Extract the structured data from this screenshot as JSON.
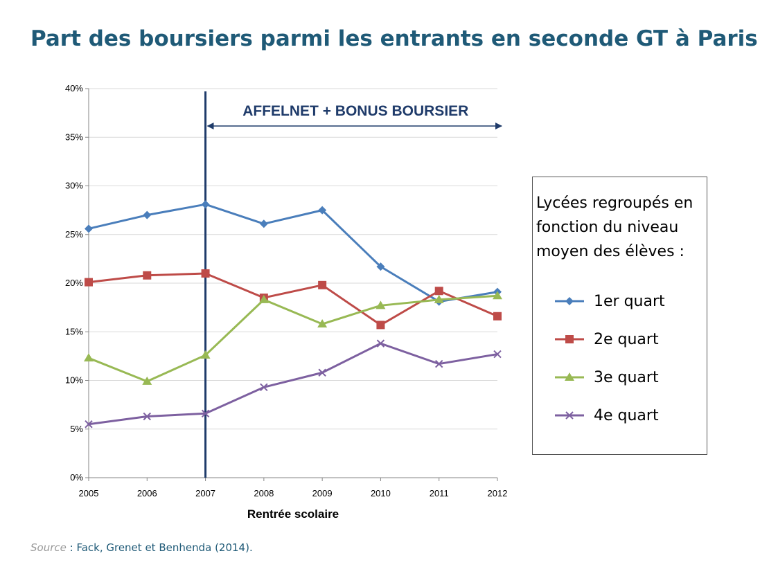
{
  "page": {
    "title": "Part des boursiers parmi les entrants en seconde GT à Paris",
    "source_label": "Source",
    "source_sep": " : ",
    "source_text": "Fack, Grenet et Benhenda (2014)."
  },
  "legend": {
    "title": "Lycées regroupés en fonction du niveau moyen des élèves :"
  },
  "colors": {
    "series1": "#4a7ebb",
    "series2": "#be4b48",
    "series3": "#98b954",
    "series4": "#7d60a0",
    "vline": "#1f3b6a",
    "grid": "#d9d9d9",
    "axis": "#868686"
  },
  "chart_data": {
    "type": "line",
    "x": [
      2005,
      2006,
      2007,
      2008,
      2009,
      2010,
      2011,
      2012
    ],
    "xlabel": "Rentrée scolaire",
    "ylabel": "",
    "ylim": [
      0,
      0.4
    ],
    "yticks": [
      "0%",
      "5%",
      "10%",
      "15%",
      "20%",
      "25%",
      "30%",
      "35%",
      "40%"
    ],
    "grid": "horizontal",
    "legend_position": "right",
    "series": [
      {
        "name": "1er quart",
        "marker": "diamond",
        "values": [
          0.256,
          0.27,
          0.281,
          0.261,
          0.275,
          0.217,
          0.181,
          0.191
        ]
      },
      {
        "name": "2e quart",
        "marker": "square",
        "values": [
          0.201,
          0.208,
          0.21,
          0.185,
          0.198,
          0.157,
          0.192,
          0.166
        ]
      },
      {
        "name": "3e quart",
        "marker": "triangle",
        "values": [
          0.123,
          0.099,
          0.126,
          0.183,
          0.158,
          0.177,
          0.183,
          0.187
        ]
      },
      {
        "name": "4e quart",
        "marker": "x",
        "values": [
          0.055,
          0.063,
          0.066,
          0.093,
          0.108,
          0.138,
          0.117,
          0.127
        ]
      }
    ],
    "annotation": {
      "text": "AFFELNET + BONUS BOURSIER",
      "from_year": 2007,
      "to_year": 2012,
      "vertical_line_year": 2007
    }
  }
}
